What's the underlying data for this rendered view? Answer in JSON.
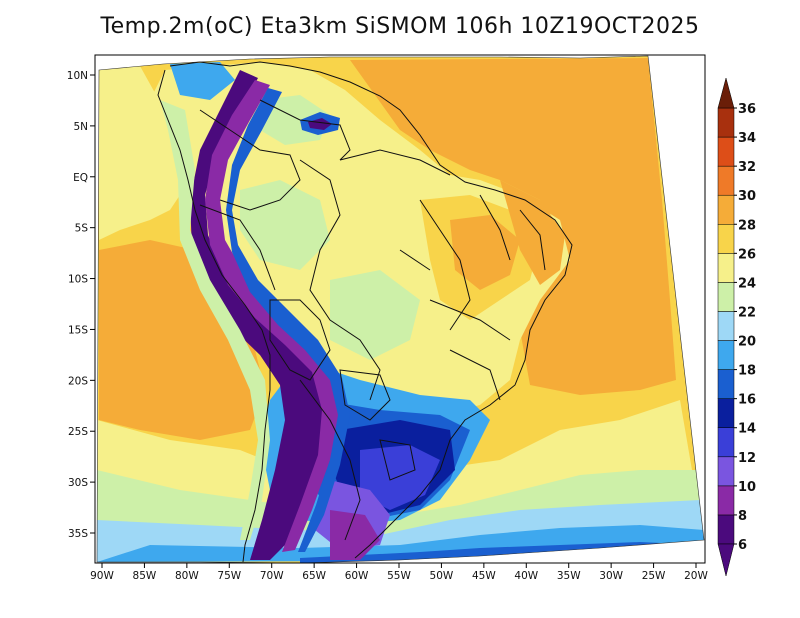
{
  "title": "Temp.2m(oC) Eta3km SiSMOM 106h 10Z19OCT2025",
  "variable": "2m temperature",
  "units": "oC",
  "map": {
    "lon_range": [
      -91,
      -20
    ],
    "lat_range": [
      -38,
      12
    ],
    "lon_ticks": [
      {
        "value": -90,
        "label": "90W"
      },
      {
        "value": -85,
        "label": "85W"
      },
      {
        "value": -80,
        "label": "80W"
      },
      {
        "value": -75,
        "label": "75W"
      },
      {
        "value": -70,
        "label": "70W"
      },
      {
        "value": -65,
        "label": "65W"
      },
      {
        "value": -60,
        "label": "60W"
      },
      {
        "value": -55,
        "label": "55W"
      },
      {
        "value": -50,
        "label": "50W"
      },
      {
        "value": -45,
        "label": "45W"
      },
      {
        "value": -40,
        "label": "40W"
      },
      {
        "value": -35,
        "label": "35W"
      },
      {
        "value": -30,
        "label": "30W"
      },
      {
        "value": -25,
        "label": "25W"
      },
      {
        "value": -20,
        "label": "20W"
      }
    ],
    "lat_ticks": [
      {
        "value": 10,
        "label": "10N"
      },
      {
        "value": 5,
        "label": "5N"
      },
      {
        "value": 0,
        "label": "EQ"
      },
      {
        "value": -5,
        "label": "5S"
      },
      {
        "value": -10,
        "label": "10S"
      },
      {
        "value": -15,
        "label": "15S"
      },
      {
        "value": -20,
        "label": "20S"
      },
      {
        "value": -25,
        "label": "25S"
      },
      {
        "value": -30,
        "label": "30S"
      },
      {
        "value": -35,
        "label": "35S"
      }
    ]
  },
  "colorbar": {
    "levels": [
      {
        "label": "6",
        "color": "#4b0a7d"
      },
      {
        "label": "8",
        "color": "#8a2aa6"
      },
      {
        "label": "10",
        "color": "#7a55e0"
      },
      {
        "label": "12",
        "color": "#3a3fd8"
      },
      {
        "label": "14",
        "color": "#0a1f9e"
      },
      {
        "label": "16",
        "color": "#1a5fd0"
      },
      {
        "label": "18",
        "color": "#3ea8ee"
      },
      {
        "label": "20",
        "color": "#9ed8f6"
      },
      {
        "label": "22",
        "color": "#cdf0a8"
      },
      {
        "label": "24",
        "color": "#f6f08a"
      },
      {
        "label": "26",
        "color": "#f8d44a"
      },
      {
        "label": "28",
        "color": "#f5ac38"
      },
      {
        "label": "30",
        "color": "#ef7a28"
      },
      {
        "label": "32",
        "color": "#dd4e18"
      },
      {
        "label": "34",
        "color": "#a8300e"
      },
      {
        "label": "36",
        "color": "#6a1e08"
      }
    ],
    "cap_low_color": "#4b0a7d",
    "cap_high_color": "#6a1e08"
  }
}
